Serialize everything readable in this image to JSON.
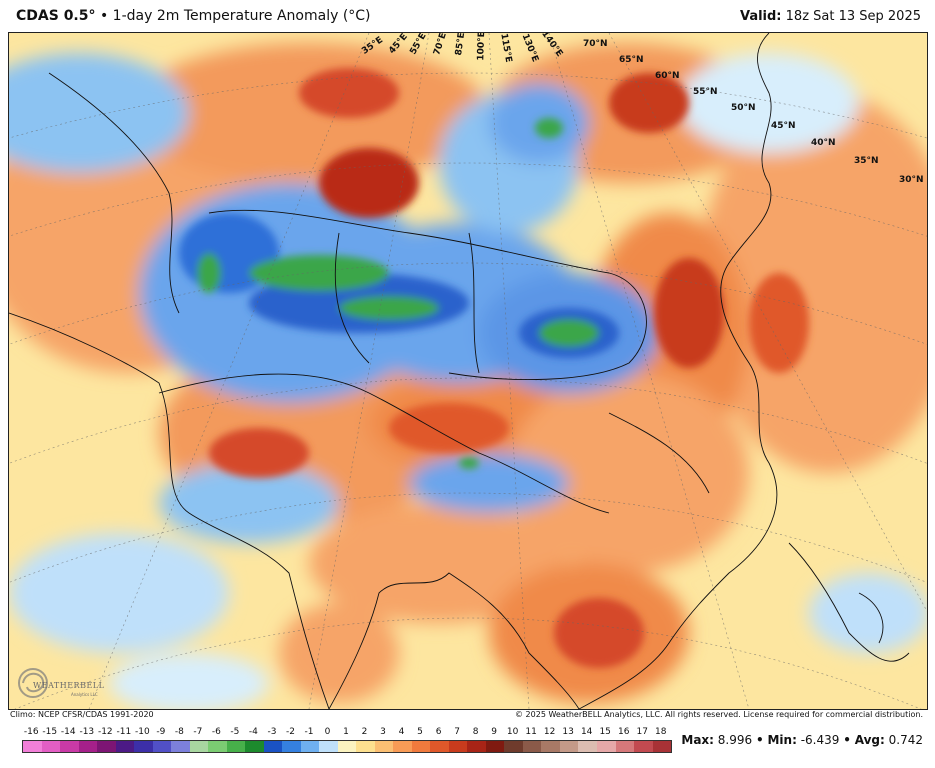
{
  "header": {
    "model": "CDAS 0.5°",
    "separator": " • ",
    "product": "1-day 2m Temperature Anomaly (°C)",
    "valid_label": "Valid:",
    "valid_time": "18z Sat 13 Sep 2025"
  },
  "map": {
    "lat_labels": [
      {
        "text": "70°N"
      },
      {
        "text": "65°N"
      },
      {
        "text": "60°N"
      },
      {
        "text": "55°N"
      },
      {
        "text": "50°N"
      },
      {
        "text": "45°N"
      },
      {
        "text": "40°N"
      },
      {
        "text": "35°N"
      },
      {
        "text": "30°N"
      }
    ],
    "lon_labels": [
      {
        "text": "35°E"
      },
      {
        "text": "45°E"
      },
      {
        "text": "55°E"
      },
      {
        "text": "70°E"
      },
      {
        "text": "85°E"
      },
      {
        "text": "100°E"
      },
      {
        "text": "115°E"
      },
      {
        "text": "130°E"
      },
      {
        "text": "140°E"
      }
    ],
    "logo_text": "WEATHERBELL",
    "logo_sub": "Analytics LLC"
  },
  "footer": {
    "climo": "Climo: NCEP CFSR/CDAS 1991-2020",
    "copyright": "© 2025 WeatherBELL Analytics, LLC. All rights reserved. License required for commercial distribution."
  },
  "colorbar": {
    "labels": [
      "-16",
      "-15",
      "-14",
      "-13",
      "-12",
      "-11",
      "-10",
      "-9",
      "-8",
      "-7",
      "-6",
      "-5",
      "-4",
      "-3",
      "-2",
      "-1",
      "0",
      "1",
      "2",
      "3",
      "4",
      "5",
      "6",
      "7",
      "8",
      "9",
      "10",
      "11",
      "12",
      "13",
      "14",
      "15",
      "16",
      "17",
      "18"
    ],
    "colors": [
      "#f27fd8",
      "#e35ec4",
      "#c93aa6",
      "#a5208a",
      "#7d1574",
      "#4c1a86",
      "#3c2fa8",
      "#5150c7",
      "#7c80db",
      "#a8d6a0",
      "#7bcc72",
      "#47b04a",
      "#1c8a2d",
      "#1a52c4",
      "#3580e0",
      "#6fb0f0",
      "#bfe0fa",
      "#fbf3c0",
      "#fde08f",
      "#fbbf73",
      "#f89b56",
      "#f07a3d",
      "#e0582a",
      "#c83b1d",
      "#a82416",
      "#7f1a10",
      "#6f3b2c",
      "#8b5a49",
      "#a87966",
      "#c49a88",
      "#dcbdb1",
      "#e6a8a8",
      "#d6787a",
      "#c24a50",
      "#a83236"
    ]
  },
  "stats": {
    "max_label": "Max:",
    "max_value": "8.996",
    "min_label": "Min:",
    "min_value": "-6.439",
    "avg_label": "Avg:",
    "avg_value": "0.742",
    "sep": "•"
  }
}
